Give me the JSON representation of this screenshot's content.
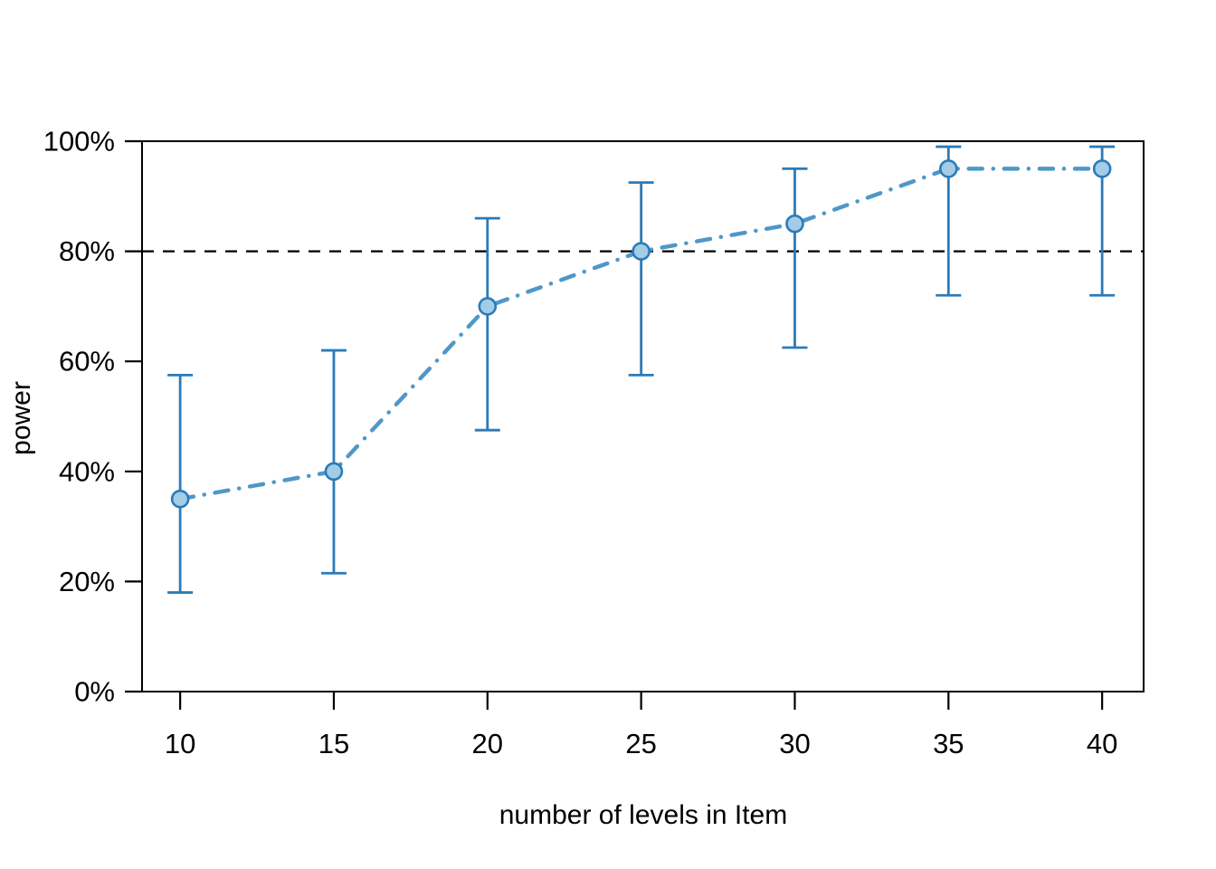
{
  "chart_data": {
    "type": "line",
    "title": "",
    "xlabel": "number of levels in Item",
    "ylabel": "power",
    "x": [
      10,
      15,
      20,
      25,
      30,
      35,
      40
    ],
    "series": [
      {
        "name": "power",
        "values": [
          35,
          40,
          70,
          80,
          85,
          95,
          95
        ],
        "ci_lower": [
          18,
          21.5,
          47.5,
          57.5,
          62.5,
          72,
          72
        ],
        "ci_upper": [
          57.5,
          62,
          86,
          92.5,
          95,
          99,
          99
        ],
        "line_style": "dash-dot",
        "marker": "circle"
      }
    ],
    "reference_line_y": 80,
    "xlim": [
      8.76,
      41.35
    ],
    "ylim": [
      0,
      100
    ],
    "x_ticks": [
      10,
      15,
      20,
      25,
      30,
      35,
      40
    ],
    "x_tick_labels": [
      "10",
      "15",
      "20",
      "25",
      "30",
      "35",
      "40"
    ],
    "y_ticks": [
      0,
      20,
      40,
      60,
      80,
      100
    ],
    "y_tick_labels": [
      "0%",
      "20%",
      "40%",
      "60%",
      "80%",
      "100%"
    ],
    "grid": false,
    "legend": false,
    "box": true,
    "colors": {
      "series_line": "#4f97c8",
      "error_bar": "#2b7bb9",
      "marker_fill": "#a3cde6",
      "marker_stroke": "#2b7bb9",
      "reference_line": "#000000",
      "axis": "#000000",
      "background": "#ffffff"
    }
  }
}
